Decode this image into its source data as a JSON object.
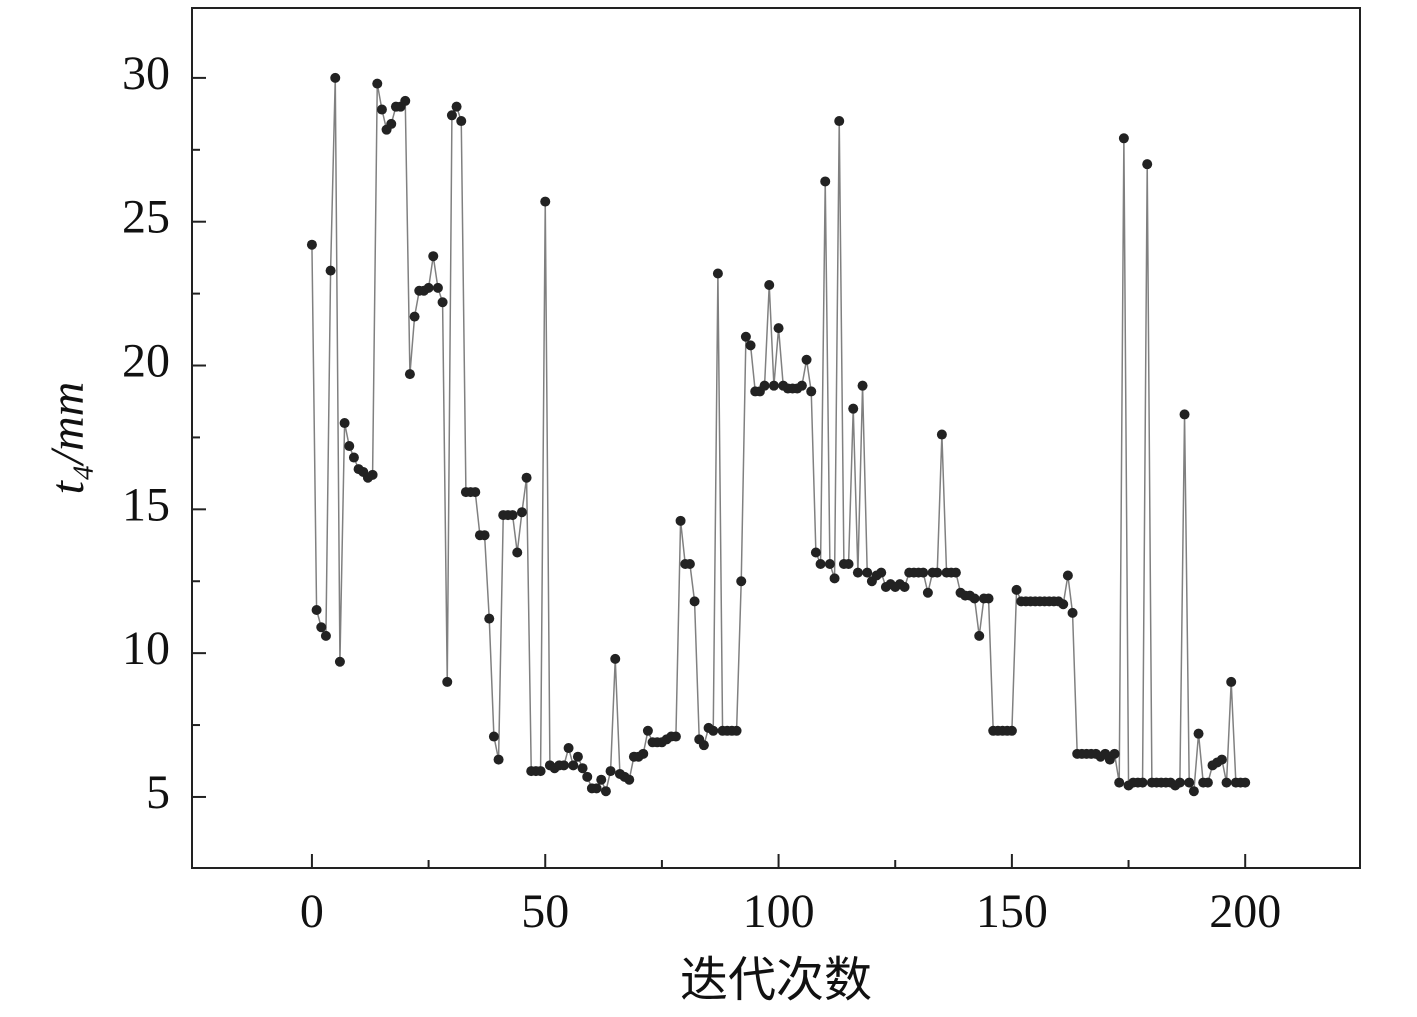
{
  "chart_data": {
    "type": "line",
    "xlabel": "迭代次数",
    "ylabel": "t₄/mm",
    "x": [
      0,
      1,
      2,
      3,
      4,
      5,
      6,
      7,
      8,
      9,
      10,
      11,
      12,
      13,
      14,
      15,
      16,
      17,
      18,
      19,
      20,
      21,
      22,
      23,
      24,
      25,
      26,
      27,
      28,
      29,
      30,
      31,
      32,
      33,
      34,
      35,
      36,
      37,
      38,
      39,
      40,
      41,
      42,
      43,
      44,
      45,
      46,
      47,
      48,
      49,
      50,
      51,
      52,
      53,
      54,
      55,
      56,
      57,
      58,
      59,
      60,
      61,
      62,
      63,
      64,
      65,
      66,
      67,
      68,
      69,
      70,
      71,
      72,
      73,
      74,
      75,
      76,
      77,
      78,
      79,
      80,
      81,
      82,
      83,
      84,
      85,
      86,
      87,
      88,
      89,
      90,
      91,
      92,
      93,
      94,
      95,
      96,
      97,
      98,
      99,
      100,
      101,
      102,
      103,
      104,
      105,
      106,
      107,
      108,
      109,
      110,
      111,
      112,
      113,
      114,
      115,
      116,
      117,
      118,
      119,
      120,
      121,
      122,
      123,
      124,
      125,
      126,
      127,
      128,
      129,
      130,
      131,
      132,
      133,
      134,
      135,
      136,
      137,
      138,
      139,
      140,
      141,
      142,
      143,
      144,
      145,
      146,
      147,
      148,
      149,
      150,
      151,
      152,
      153,
      154,
      155,
      156,
      157,
      158,
      159,
      160,
      161,
      162,
      163,
      164,
      165,
      166,
      167,
      168,
      169,
      170,
      171,
      172,
      173,
      174,
      175,
      176,
      177,
      178,
      179,
      180,
      181,
      182,
      183,
      184,
      185,
      186,
      187,
      188,
      189,
      190,
      191,
      192,
      193,
      194,
      195,
      196,
      197,
      198,
      199,
      200
    ],
    "series": [
      {
        "color": "#222222",
        "line_color": "#808080",
        "values": [
          24.2,
          11.5,
          10.9,
          10.6,
          23.3,
          30.0,
          9.7,
          18.0,
          17.2,
          16.8,
          16.4,
          16.3,
          16.1,
          16.2,
          29.8,
          28.9,
          28.2,
          28.4,
          29.0,
          29.0,
          29.2,
          19.7,
          21.7,
          22.6,
          22.6,
          22.7,
          23.8,
          22.7,
          22.2,
          9.0,
          28.7,
          29.0,
          28.5,
          15.6,
          15.6,
          15.6,
          14.1,
          14.1,
          11.2,
          7.1,
          6.3,
          14.8,
          14.8,
          14.8,
          13.5,
          14.9,
          16.1,
          5.9,
          5.9,
          5.9,
          25.7,
          6.1,
          6.0,
          6.1,
          6.1,
          6.7,
          6.1,
          6.4,
          6.0,
          5.7,
          5.3,
          5.3,
          5.6,
          5.2,
          5.9,
          9.8,
          5.8,
          5.7,
          5.6,
          6.4,
          6.4,
          6.5,
          7.3,
          6.9,
          6.9,
          6.9,
          7.0,
          7.1,
          7.1,
          14.6,
          13.1,
          13.1,
          11.8,
          7.0,
          6.8,
          7.4,
          7.3,
          23.2,
          7.3,
          7.3,
          7.3,
          7.3,
          12.5,
          21.0,
          20.7,
          19.1,
          19.1,
          19.3,
          22.8,
          19.3,
          21.3,
          19.3,
          19.2,
          19.2,
          19.2,
          19.3,
          20.2,
          19.1,
          13.5,
          13.1,
          26.4,
          13.1,
          12.6,
          28.5,
          13.1,
          13.1,
          18.5,
          12.8,
          19.3,
          12.8,
          12.5,
          12.7,
          12.8,
          12.3,
          12.4,
          12.3,
          12.4,
          12.3,
          12.8,
          12.8,
          12.8,
          12.8,
          12.1,
          12.8,
          12.8,
          17.6,
          12.8,
          12.8,
          12.8,
          12.1,
          12.0,
          12.0,
          11.9,
          10.6,
          11.9,
          11.9,
          7.3,
          7.3,
          7.3,
          7.3,
          7.3,
          12.2,
          11.8,
          11.8,
          11.8,
          11.8,
          11.8,
          11.8,
          11.8,
          11.8,
          11.8,
          11.7,
          12.7,
          11.4,
          6.5,
          6.5,
          6.5,
          6.5,
          6.5,
          6.4,
          6.5,
          6.3,
          6.5,
          5.5,
          27.9,
          5.4,
          5.5,
          5.5,
          5.5,
          27.0,
          5.5,
          5.5,
          5.5,
          5.5,
          5.5,
          5.4,
          5.5,
          18.3,
          5.5,
          5.2,
          7.2,
          5.5,
          5.5,
          6.1,
          6.2,
          6.3,
          5.5,
          9.0,
          5.5,
          5.5,
          5.5
        ]
      }
    ],
    "xlim": [
      -25.7,
      224.6
    ],
    "ylim": [
      2.53,
      32.43
    ],
    "xticks": [
      0,
      50,
      100,
      150,
      200
    ],
    "yticks": [
      5,
      10,
      15,
      20,
      25,
      30
    ],
    "xminor_ticks": [
      25,
      75,
      125,
      175
    ],
    "yminor_ticks": [
      7.5,
      12.5,
      17.5,
      22.5,
      27.5
    ]
  }
}
